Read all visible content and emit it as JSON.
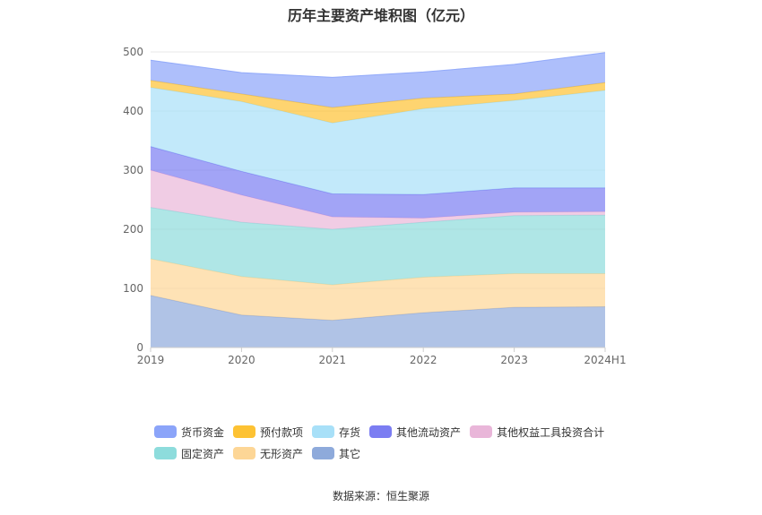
{
  "title": "历年主要资产堆积图（亿元）",
  "source": "数据来源：恒生聚源",
  "colors": {
    "axis": "#cccccc",
    "grid": "#e8e8e8"
  },
  "chart_data": {
    "type": "area",
    "stacked": true,
    "categories": [
      "2019",
      "2020",
      "2021",
      "2022",
      "2023",
      "2024H1"
    ],
    "ylim": [
      0,
      500
    ],
    "yticks": [
      "0",
      "100",
      "200",
      "300",
      "400",
      "500"
    ],
    "grid": true,
    "legend_position": "bottom",
    "series": [
      {
        "name": "其它",
        "color": "#8eaadb",
        "values": [
          88,
          55,
          46,
          59,
          68,
          69
        ]
      },
      {
        "name": "无形资产",
        "color": "#fdd696",
        "values": [
          62,
          65,
          60,
          60,
          57,
          56
        ]
      },
      {
        "name": "固定资产",
        "color": "#8ddcdc",
        "values": [
          87,
          92,
          94,
          93,
          98,
          99
        ]
      },
      {
        "name": "其他权益工具投资合计",
        "color": "#e9b6d9",
        "values": [
          63,
          46,
          21,
          7,
          6,
          6
        ]
      },
      {
        "name": "其他流动资产",
        "color": "#7b7df2",
        "values": [
          40,
          40,
          39,
          40,
          41,
          40
        ]
      },
      {
        "name": "存货",
        "color": "#a8e0f8",
        "values": [
          100,
          118,
          120,
          145,
          148,
          165
        ]
      },
      {
        "name": "预付款项",
        "color": "#fdc233",
        "values": [
          12,
          13,
          26,
          18,
          11,
          13
        ]
      },
      {
        "name": "货币资金",
        "color": "#8ba4f9",
        "values": [
          34,
          36,
          51,
          44,
          50,
          51
        ]
      }
    ]
  },
  "legend_rows": [
    [
      {
        "label": "货币资金",
        "color": "#8ba4f9"
      },
      {
        "label": "预付款项",
        "color": "#fdc233"
      },
      {
        "label": "存货",
        "color": "#a8e0f8"
      },
      {
        "label": "其他流动资产",
        "color": "#7b7df2"
      },
      {
        "label": "其他权益工具投资合计",
        "color": "#e9b6d9"
      }
    ],
    [
      {
        "label": "固定资产",
        "color": "#8ddcdc"
      },
      {
        "label": "无形资产",
        "color": "#fdd696"
      },
      {
        "label": "其它",
        "color": "#8eaadb"
      }
    ]
  ]
}
